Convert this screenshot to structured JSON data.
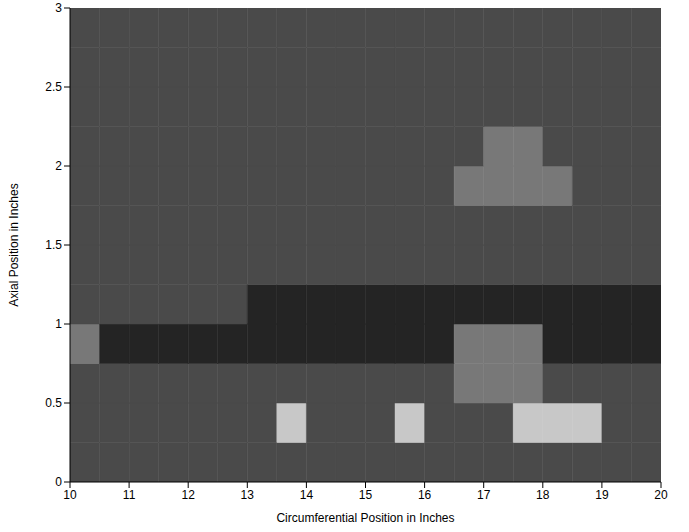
{
  "chart_data": {
    "type": "heatmap",
    "x_label": "Circumferential Position in Inches",
    "y_label": "Axial Position in Inches",
    "xlim": [
      10,
      20
    ],
    "xticks": [
      10,
      11,
      12,
      13,
      14,
      15,
      16,
      17,
      18,
      19,
      20
    ],
    "ylim": [
      0,
      3
    ],
    "yticks": [
      0,
      0.5,
      1,
      1.5,
      2,
      2.5,
      3
    ],
    "x_edges": [
      10,
      10.5,
      11,
      11.5,
      12,
      12.5,
      13,
      13.5,
      14,
      14.5,
      15,
      15.5,
      16,
      16.5,
      17,
      17.5,
      18,
      18.5,
      19,
      19.5,
      20
    ],
    "y_edges": [
      0,
      0.25,
      0.5,
      0.75,
      1,
      1.25,
      1.5,
      1.75,
      2,
      2.25,
      2.5,
      2.75,
      3
    ],
    "levels": [
      1,
      2,
      3,
      4
    ],
    "colors": [
      "#242424",
      "#4a4a4a",
      "#787878",
      "#c8c8c8"
    ],
    "cells": [
      [
        2,
        2,
        2,
        2,
        2,
        2,
        2,
        2,
        2,
        2,
        2,
        2,
        2,
        2,
        2,
        2,
        2,
        2,
        2,
        2
      ],
      [
        2,
        2,
        2,
        2,
        2,
        2,
        2,
        4,
        2,
        2,
        2,
        4,
        2,
        2,
        2,
        4,
        4,
        4,
        2,
        2
      ],
      [
        2,
        2,
        2,
        2,
        2,
        2,
        2,
        2,
        2,
        2,
        2,
        2,
        2,
        3,
        3,
        3,
        2,
        2,
        2,
        2
      ],
      [
        3,
        1,
        1,
        1,
        1,
        1,
        1,
        1,
        1,
        1,
        1,
        1,
        1,
        3,
        3,
        3,
        1,
        1,
        1,
        1
      ],
      [
        2,
        2,
        2,
        2,
        2,
        2,
        1,
        1,
        1,
        1,
        1,
        1,
        1,
        1,
        1,
        1,
        1,
        1,
        1,
        1
      ],
      [
        2,
        2,
        2,
        2,
        2,
        2,
        2,
        2,
        2,
        2,
        2,
        2,
        2,
        2,
        2,
        2,
        2,
        2,
        2,
        2
      ],
      [
        2,
        2,
        2,
        2,
        2,
        2,
        2,
        2,
        2,
        2,
        2,
        2,
        2,
        2,
        2,
        2,
        2,
        2,
        2,
        2
      ],
      [
        2,
        2,
        2,
        2,
        2,
        2,
        2,
        2,
        2,
        2,
        2,
        2,
        2,
        3,
        3,
        3,
        3,
        2,
        2,
        2
      ],
      [
        2,
        2,
        2,
        2,
        2,
        2,
        2,
        2,
        2,
        2,
        2,
        2,
        2,
        2,
        3,
        3,
        2,
        2,
        2,
        2
      ],
      [
        2,
        2,
        2,
        2,
        2,
        2,
        2,
        2,
        2,
        2,
        2,
        2,
        2,
        2,
        2,
        2,
        2,
        2,
        2,
        2
      ],
      [
        2,
        2,
        2,
        2,
        2,
        2,
        2,
        2,
        2,
        2,
        2,
        2,
        2,
        2,
        2,
        2,
        2,
        2,
        2,
        2
      ],
      [
        2,
        2,
        2,
        2,
        2,
        2,
        2,
        2,
        2,
        2,
        2,
        2,
        2,
        2,
        2,
        2,
        2,
        2,
        2,
        2
      ]
    ]
  }
}
